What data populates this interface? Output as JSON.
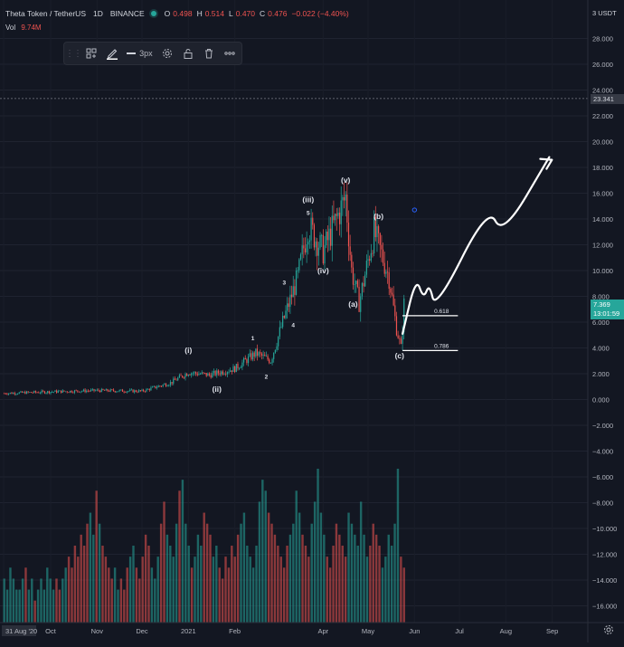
{
  "header": {
    "symbol": "Theta Token / TetherUS",
    "interval": "1D",
    "exchange": "BINANCE",
    "ohlc": [
      {
        "label": "O",
        "value": "0.498"
      },
      {
        "label": "H",
        "value": "0.514"
      },
      {
        "label": "L",
        "value": "0.470"
      },
      {
        "label": "C",
        "value": "0.476"
      },
      {
        "label": "",
        "value": "−0.022 (−4.40%)"
      }
    ],
    "volume_label": "Vol",
    "volume_value": "9.74M",
    "status_color": "#26a69a",
    "down_color": "#ef5350"
  },
  "toolbar": {
    "items": [
      "drag-handle-icon",
      "template-icon",
      "pen-icon",
      "line-width",
      "settings-icon",
      "lock-icon",
      "trash-icon",
      "more-icon"
    ],
    "line_width_label": "3px"
  },
  "price_scale": {
    "currency": "USDT",
    "current_price": "7.369",
    "countdown": "13:01:59",
    "crosshair_price": "23.341"
  },
  "chart_data": {
    "type": "candlestick",
    "title": "",
    "xlabel": "",
    "ylabel": "",
    "ylim": [
      -17,
      30
    ],
    "grid": true,
    "y_ticks": [
      "28.000",
      "26.000",
      "24.000",
      "22.000",
      "20.000",
      "18.000",
      "16.000",
      "14.000",
      "12.000",
      "10.000",
      "8.000",
      "6.000",
      "4.000",
      "2.000",
      "0.000",
      "−2.000",
      "−4.000",
      "−6.000",
      "−8.000",
      "−10.000",
      "−12.000",
      "−14.000",
      "−16.000"
    ],
    "x_ticks": [
      "31 Aug '20",
      "Oct",
      "Nov",
      "Dec",
      "2021",
      "Feb",
      "Apr",
      "May",
      "Jun",
      "Jul",
      "Aug",
      "Sep"
    ],
    "price_path": [
      {
        "date": "2020-08-31",
        "price": 0.48
      },
      {
        "date": "2020-10-01",
        "price": 0.6
      },
      {
        "date": "2020-11-01",
        "price": 0.7
      },
      {
        "date": "2020-12-01",
        "price": 0.65
      },
      {
        "date": "2020-12-20",
        "price": 1.3
      },
      {
        "date": "2021-01-01",
        "price": 2.1
      },
      {
        "date": "2021-01-15",
        "price": 1.9
      },
      {
        "date": "2021-02-01",
        "price": 2.4
      },
      {
        "date": "2021-02-15",
        "price": 3.6
      },
      {
        "date": "2021-02-25",
        "price": 3.0
      },
      {
        "date": "2021-03-05",
        "price": 6.0
      },
      {
        "date": "2021-03-15",
        "price": 9.5
      },
      {
        "date": "2021-03-22",
        "price": 13.5
      },
      {
        "date": "2021-04-01",
        "price": 11.5
      },
      {
        "date": "2021-04-16",
        "price": 15.7
      },
      {
        "date": "2021-04-20",
        "price": 10.0
      },
      {
        "date": "2021-04-25",
        "price": 7.5
      },
      {
        "date": "2021-05-05",
        "price": 13.0
      },
      {
        "date": "2021-05-15",
        "price": 9.5
      },
      {
        "date": "2021-05-20",
        "price": 5.5
      },
      {
        "date": "2021-05-23",
        "price": 4.0
      },
      {
        "date": "2021-05-25",
        "price": 7.37
      }
    ],
    "volume_series": [
      4,
      3,
      5,
      4,
      3,
      3,
      4,
      5,
      3,
      4,
      2,
      3,
      4,
      3,
      5,
      4,
      3,
      4,
      3,
      4,
      5,
      6,
      5,
      7,
      6,
      8,
      7,
      9,
      10,
      8,
      12,
      9,
      7,
      6,
      5,
      4,
      5,
      3,
      4,
      3,
      5,
      6,
      7,
      5,
      4,
      6,
      8,
      7,
      5,
      4,
      6,
      9,
      11,
      8,
      7,
      6,
      9,
      12,
      13,
      9,
      7,
      5,
      6,
      8,
      7,
      10,
      9,
      8,
      6,
      7,
      5,
      4,
      6,
      5,
      7,
      6,
      8,
      9,
      10,
      7,
      6,
      5,
      7,
      11,
      13,
      12,
      10,
      9,
      8,
      7,
      6,
      5,
      7,
      8,
      9,
      12,
      10,
      8,
      7,
      6,
      9,
      11,
      14,
      10,
      8,
      6,
      5,
      7,
      9,
      8,
      7,
      6,
      10,
      9,
      8,
      7,
      11,
      8,
      6,
      7,
      9,
      8,
      7,
      5,
      6,
      8,
      7,
      9,
      14,
      6,
      5
    ],
    "wave_labels": [
      {
        "label": "(i)",
        "date": "2021-01-01",
        "price": 3.6
      },
      {
        "label": "(ii)",
        "date": "2021-01-20",
        "price": 0.6
      },
      {
        "label": "1",
        "date": "2021-02-13",
        "price": 4.6
      },
      {
        "label": "2",
        "date": "2021-02-22",
        "price": 1.6
      },
      {
        "label": "3",
        "date": "2021-03-06",
        "price": 8.9
      },
      {
        "label": "4",
        "date": "2021-03-12",
        "price": 5.6
      },
      {
        "label": "5",
        "date": "2021-03-22",
        "price": 14.3
      },
      {
        "label": "(iii)",
        "date": "2021-03-22",
        "price": 15.3
      },
      {
        "label": "(iv)",
        "date": "2021-04-01",
        "price": 9.8
      },
      {
        "label": "(v)",
        "date": "2021-04-16",
        "price": 16.8
      },
      {
        "label": "(a)",
        "date": "2021-04-21",
        "price": 7.2
      },
      {
        "label": "(b)",
        "date": "2021-05-08",
        "price": 14.0
      },
      {
        "label": "(c)",
        "date": "2021-05-22",
        "price": 3.2
      }
    ],
    "fib_levels": [
      {
        "label": "0.618",
        "price": 6.5
      },
      {
        "label": "0.786",
        "price": 3.8
      }
    ],
    "projection": [
      {
        "date": "2021-05-24",
        "price": 5.1
      },
      {
        "date": "2021-06-02",
        "price": 9.5
      },
      {
        "date": "2021-06-07",
        "price": 7.8
      },
      {
        "date": "2021-06-11",
        "price": 9.0
      },
      {
        "date": "2021-06-15",
        "price": 6.9
      },
      {
        "date": "2021-07-20",
        "price": 15.0
      },
      {
        "date": "2021-07-30",
        "price": 12.7
      },
      {
        "date": "2021-08-30",
        "price": 18.8
      }
    ],
    "marker": {
      "date": "2021-06-01",
      "price": 14.7
    }
  }
}
